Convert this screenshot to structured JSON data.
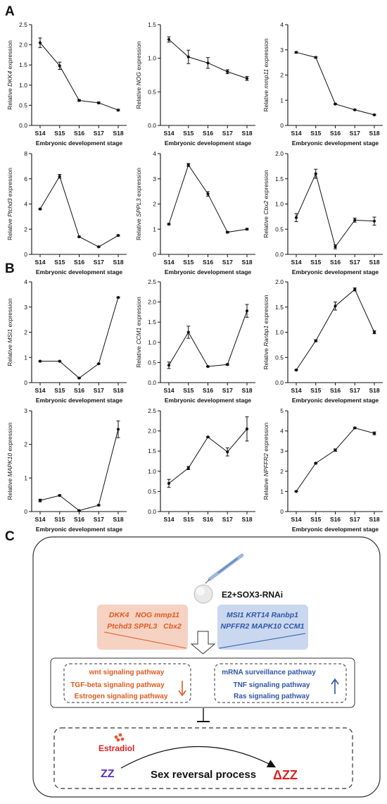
{
  "panels": {
    "a": "A",
    "b": "B",
    "c": "C"
  },
  "chart_data": [
    {
      "type": "line",
      "group": "A",
      "gene": "DKK4",
      "ylabel_prefix": "Relative ",
      "ylabel_suffix": " expression",
      "xlabel": "Embryonic development stage",
      "categories": [
        "S14",
        "S15",
        "S16",
        "S17",
        "S18"
      ],
      "values": [
        2.05,
        1.48,
        0.62,
        0.56,
        0.38
      ],
      "errors": [
        0.12,
        0.09,
        0.02,
        0.02,
        0.02
      ],
      "ylim": [
        0,
        2.5
      ],
      "yticks": [
        "0.0",
        "0.5",
        "1.0",
        "1.5",
        "2.0",
        "2.5"
      ]
    },
    {
      "type": "line",
      "group": "A",
      "gene": "NOG",
      "ylabel_prefix": "Relative ",
      "ylabel_suffix": " expression",
      "xlabel": "Embryonic development stage",
      "categories": [
        "S14",
        "S15",
        "S16",
        "S17",
        "S18"
      ],
      "values": [
        1.28,
        1.02,
        0.93,
        0.8,
        0.7
      ],
      "errors": [
        0.04,
        0.1,
        0.08,
        0.03,
        0.03
      ],
      "ylim": [
        0,
        1.5
      ],
      "yticks": [
        "0.0",
        "0.5",
        "1.0",
        "1.5"
      ]
    },
    {
      "type": "line",
      "group": "A",
      "gene": "mmp11",
      "ylabel_prefix": "Relative ",
      "ylabel_suffix": " expression",
      "xlabel": "Embryonic development stage",
      "categories": [
        "S14",
        "S15",
        "S16",
        "S17",
        "S18"
      ],
      "values": [
        2.9,
        2.7,
        0.85,
        0.62,
        0.42
      ],
      "errors": [
        0.03,
        0.03,
        0.02,
        0.02,
        0.02
      ],
      "ylim": [
        0,
        4
      ],
      "yticks": [
        "0",
        "1",
        "2",
        "3",
        "4"
      ]
    },
    {
      "type": "line",
      "group": "A",
      "gene": "Ptchd3",
      "ylabel_prefix": "Relative ",
      "ylabel_suffix": " expression",
      "xlabel": "Embryonic development stage",
      "categories": [
        "S14",
        "S15",
        "S16",
        "S17",
        "S18"
      ],
      "values": [
        3.6,
        6.2,
        1.4,
        0.6,
        1.5
      ],
      "errors": [
        0.05,
        0.15,
        0.05,
        0.03,
        0.05
      ],
      "ylim": [
        0,
        8
      ],
      "yticks": [
        "0",
        "2",
        "4",
        "6",
        "8"
      ]
    },
    {
      "type": "line",
      "group": "A",
      "gene": "SPPL3",
      "ylabel_prefix": "Relative ",
      "ylabel_suffix": " expression",
      "xlabel": "Embryonic development stage",
      "categories": [
        "S14",
        "S15",
        "S16",
        "S17",
        "S18"
      ],
      "values": [
        1.2,
        3.55,
        2.4,
        0.88,
        1.0
      ],
      "errors": [
        0.03,
        0.06,
        0.09,
        0.03,
        0.03
      ],
      "ylim": [
        0,
        4
      ],
      "yticks": [
        "0",
        "1",
        "2",
        "3",
        "4"
      ]
    },
    {
      "type": "line",
      "group": "A",
      "gene": "Cbx2",
      "ylabel_prefix": "Relative ",
      "ylabel_suffix": " expression",
      "xlabel": "Embryonic development stage",
      "categories": [
        "S14",
        "S15",
        "S16",
        "S17",
        "S18"
      ],
      "values": [
        0.73,
        1.6,
        0.15,
        0.68,
        0.66
      ],
      "errors": [
        0.08,
        0.09,
        0.04,
        0.04,
        0.08
      ],
      "ylim": [
        0,
        2
      ],
      "yticks": [
        "0.0",
        "0.5",
        "1.0",
        "1.5",
        "2.0"
      ]
    },
    {
      "type": "line",
      "group": "B",
      "gene": "MSI1",
      "ylabel_prefix": "Relative ",
      "ylabel_suffix": " expression",
      "xlabel": "Embryonic development stage",
      "categories": [
        "S14",
        "S15",
        "S16",
        "S17",
        "S18"
      ],
      "values": [
        0.85,
        0.85,
        0.18,
        0.75,
        3.38
      ],
      "errors": [
        0.01,
        0.01,
        0.01,
        0.02,
        0.02
      ],
      "ylim": [
        0,
        4
      ],
      "yticks": [
        "0",
        "1",
        "2",
        "3",
        "4"
      ]
    },
    {
      "type": "line",
      "group": "B",
      "gene": "CCM1",
      "ylabel_prefix": "Relative ",
      "ylabel_suffix": " expression",
      "xlabel": "Embryonic development stage",
      "categories": [
        "S14",
        "S15",
        "S16",
        "S17",
        "S18"
      ],
      "values": [
        0.43,
        1.25,
        0.4,
        0.45,
        1.78
      ],
      "errors": [
        0.08,
        0.15,
        0.01,
        0.02,
        0.16
      ],
      "ylim": [
        0,
        2.5
      ],
      "yticks": [
        "0.0",
        "0.5",
        "1.0",
        "1.5",
        "2.0",
        "2.5"
      ]
    },
    {
      "type": "line",
      "group": "B",
      "gene": "Ranbp1",
      "ylabel_prefix": "Relative ",
      "ylabel_suffix": " expression",
      "xlabel": "Embryonic development stage",
      "categories": [
        "S14",
        "S15",
        "S16",
        "S17",
        "S18"
      ],
      "values": [
        0.25,
        0.83,
        1.52,
        1.85,
        1.0
      ],
      "errors": [
        0.01,
        0.02,
        0.08,
        0.03,
        0.03
      ],
      "ylim": [
        0,
        2
      ],
      "yticks": [
        "0.0",
        "0.5",
        "1.0",
        "1.5",
        "2.0"
      ]
    },
    {
      "type": "line",
      "group": "B",
      "gene": "MAPK10",
      "ylabel_prefix": "Relative ",
      "ylabel_suffix": " expression",
      "xlabel": "Embryonic development stage",
      "categories": [
        "S14",
        "S15",
        "S16",
        "S17",
        "S18"
      ],
      "values": [
        0.33,
        0.48,
        0.03,
        0.19,
        2.45
      ],
      "errors": [
        0.04,
        0.02,
        0.01,
        0.02,
        0.25
      ],
      "ylim": [
        0,
        3
      ],
      "yticks": [
        "0",
        "1",
        "2",
        "3"
      ]
    },
    {
      "type": "line",
      "group": "B",
      "gene": "",
      "ylabel_prefix": "",
      "ylabel_suffix": "",
      "xlabel": "",
      "categories": [
        "S14",
        "S15",
        "S16",
        "S17",
        "S18"
      ],
      "values": [
        0.7,
        1.08,
        1.85,
        1.48,
        2.05
      ],
      "errors": [
        0.1,
        0.04,
        0.01,
        0.1,
        0.3
      ],
      "ylim": [
        0,
        2.5
      ],
      "yticks": [
        "0.0",
        "0.5",
        "1.0",
        "1.5",
        "2.0",
        "2.5"
      ]
    },
    {
      "type": "line",
      "group": "B",
      "gene": "NPFFR2",
      "ylabel_prefix": "Relative ",
      "ylabel_suffix": " expression",
      "xlabel": "Embryonic development stage",
      "categories": [
        "S14",
        "S15",
        "S16",
        "S17",
        "S18"
      ],
      "values": [
        1.0,
        2.4,
        3.05,
        4.15,
        3.88
      ],
      "errors": [
        0.02,
        0.03,
        0.06,
        0.04,
        0.07
      ],
      "ylim": [
        0,
        5
      ],
      "yticks": [
        "0",
        "1",
        "2",
        "3",
        "4",
        "5"
      ]
    }
  ],
  "diagram": {
    "treatment": "E2+SOX3-RNAi",
    "down_genes": [
      "DKK4   NOG mmp11",
      "Ptchd3 SPPL3   Cbx2"
    ],
    "up_genes": [
      "MSI1 KRT14 Ranbp1",
      "NPFFR2 MAPK10 CCM1"
    ],
    "down_pathways": [
      "wnt signaling pathway",
      "TGF-beta signaling pathway",
      "Estrogen signaling pathway"
    ],
    "up_pathways": [
      "mRNA surveillance pathway",
      "TNF signaling pathway",
      "Ras signaling pathway"
    ],
    "estradiol": "Estradiol",
    "zz": "ZZ",
    "dzz": "ΔZZ",
    "process": "Sex reversal process",
    "colors": {
      "down": "#e05a1e",
      "up": "#2f55a8",
      "down_bg": "#f6d2c2",
      "up_bg": "#c9d8ef",
      "zz": "#5a2fc8",
      "dzz": "#e02020",
      "dot": "#e8573a"
    }
  }
}
